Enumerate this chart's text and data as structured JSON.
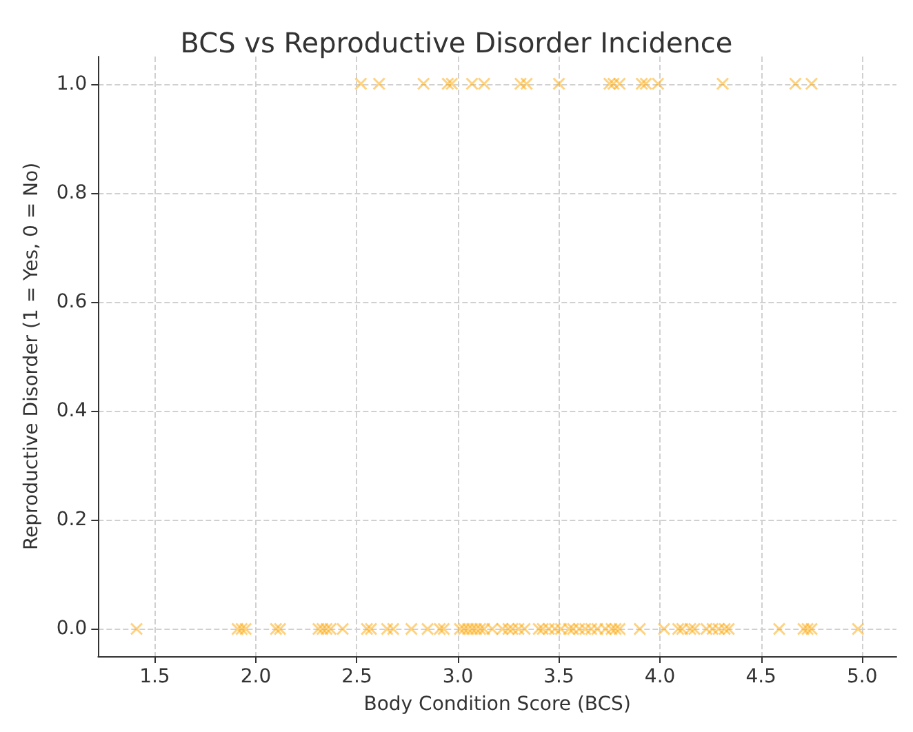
{
  "chart_data": {
    "type": "scatter",
    "title": "BCS vs Reproductive Disorder Incidence",
    "xlabel": "Body Condition Score (BCS)",
    "ylabel": "Reproductive Disorder (1 = Yes, 0 = No)",
    "xlim": [
      1.22,
      5.17
    ],
    "xticks": [
      {
        "value": 1.5,
        "label": "1.5"
      },
      {
        "value": 2,
        "label": "2.0"
      },
      {
        "value": 2.5,
        "label": "2.5"
      },
      {
        "value": 3,
        "label": "3.0"
      },
      {
        "value": 3.5,
        "label": "3.5"
      },
      {
        "value": 4,
        "label": "4.0"
      },
      {
        "value": 4.5,
        "label": "4.5"
      },
      {
        "value": 5,
        "label": "5.0"
      }
    ],
    "ylim": [
      -0.05,
      1.05
    ],
    "yticks": [
      {
        "value": 0,
        "label": "0.0"
      },
      {
        "value": 0.2,
        "label": "0.2"
      },
      {
        "value": 0.4,
        "label": "0.4"
      },
      {
        "value": 0.6,
        "label": "0.6"
      },
      {
        "value": 0.8,
        "label": "0.8"
      },
      {
        "value": 1,
        "label": "1.0"
      }
    ],
    "grid": true,
    "marker": "cross",
    "series": [
      {
        "color": "#ffa500",
        "x": [
          2.52,
          2.61,
          2.83,
          2.95,
          2.97,
          3.07,
          3.13,
          3.31,
          3.34,
          3.5,
          3.75,
          3.77,
          3.8,
          3.91,
          3.93,
          3.99,
          4.31,
          4.67,
          4.75
        ],
        "values": [
          1,
          1,
          1,
          1,
          1,
          1,
          1,
          1,
          1,
          1,
          1,
          1,
          1,
          1,
          1,
          1,
          1,
          1,
          1
        ]
      },
      {
        "color": "#ffa500",
        "x": [
          1.41,
          1.91,
          1.93,
          1.95,
          2.1,
          2.12,
          2.31,
          2.33,
          2.35,
          2.37,
          2.43,
          2.55,
          2.57,
          2.65,
          2.68,
          2.77,
          2.85,
          2.91,
          2.93,
          3.01,
          3.03,
          3.05,
          3.07,
          3.09,
          3.11,
          3.13,
          3.17,
          3.22,
          3.25,
          3.27,
          3.3,
          3.33,
          3.4,
          3.42,
          3.45,
          3.48,
          3.51,
          3.55,
          3.57,
          3.6,
          3.63,
          3.66,
          3.69,
          3.73,
          3.76,
          3.78,
          3.8,
          3.9,
          4.02,
          4.09,
          4.11,
          4.15,
          4.17,
          4.23,
          4.26,
          4.29,
          4.32,
          4.34,
          4.59,
          4.71,
          4.73,
          4.75,
          4.98
        ],
        "values": [
          0,
          0,
          0,
          0,
          0,
          0,
          0,
          0,
          0,
          0,
          0,
          0,
          0,
          0,
          0,
          0,
          0,
          0,
          0,
          0,
          0,
          0,
          0,
          0,
          0,
          0,
          0,
          0,
          0,
          0,
          0,
          0,
          0,
          0,
          0,
          0,
          0,
          0,
          0,
          0,
          0,
          0,
          0,
          0,
          0,
          0,
          0,
          0,
          0,
          0,
          0,
          0,
          0,
          0,
          0,
          0,
          0,
          0,
          0,
          0,
          0,
          0,
          0
        ]
      }
    ]
  }
}
